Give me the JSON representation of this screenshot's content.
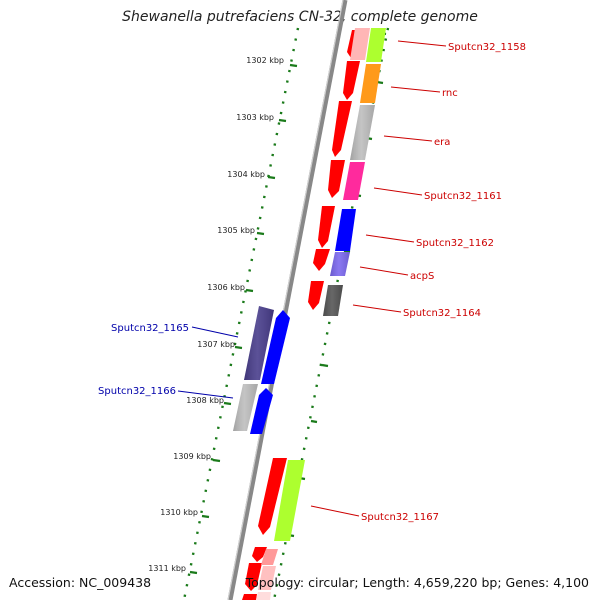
{
  "title": "Shewanella putrefaciens CN-32, complete genome",
  "accession_text": "Accession: NC_009438",
  "topology_text": "Topology: circular; Length: 4,659,220 bp; Genes: 4,100",
  "kbp_ticks": [
    "1302 kbp",
    "1303 kbp",
    "1304 kbp",
    "1305 kbp",
    "1306 kbp",
    "1307 kbp",
    "1308 kbp",
    "1309 kbp",
    "1310 kbp",
    "1311 kbp"
  ],
  "colors": {
    "label_red": "#cc0000",
    "label_blue": "#0000aa",
    "tick_green": "#1a7a1a",
    "backbone": "#888888"
  },
  "genes": [
    {
      "label": "Sputcn32_1158",
      "side": "right"
    },
    {
      "label": "rnc",
      "side": "right"
    },
    {
      "label": "era",
      "side": "right"
    },
    {
      "label": "Sputcn32_1161",
      "side": "right"
    },
    {
      "label": "Sputcn32_1162",
      "side": "right"
    },
    {
      "label": "acpS",
      "side": "right"
    },
    {
      "label": "Sputcn32_1164",
      "side": "right"
    },
    {
      "label": "Sputcn32_1165",
      "side": "left"
    },
    {
      "label": "Sputcn32_1166",
      "side": "left"
    },
    {
      "label": "Sputcn32_1167",
      "side": "right"
    }
  ]
}
